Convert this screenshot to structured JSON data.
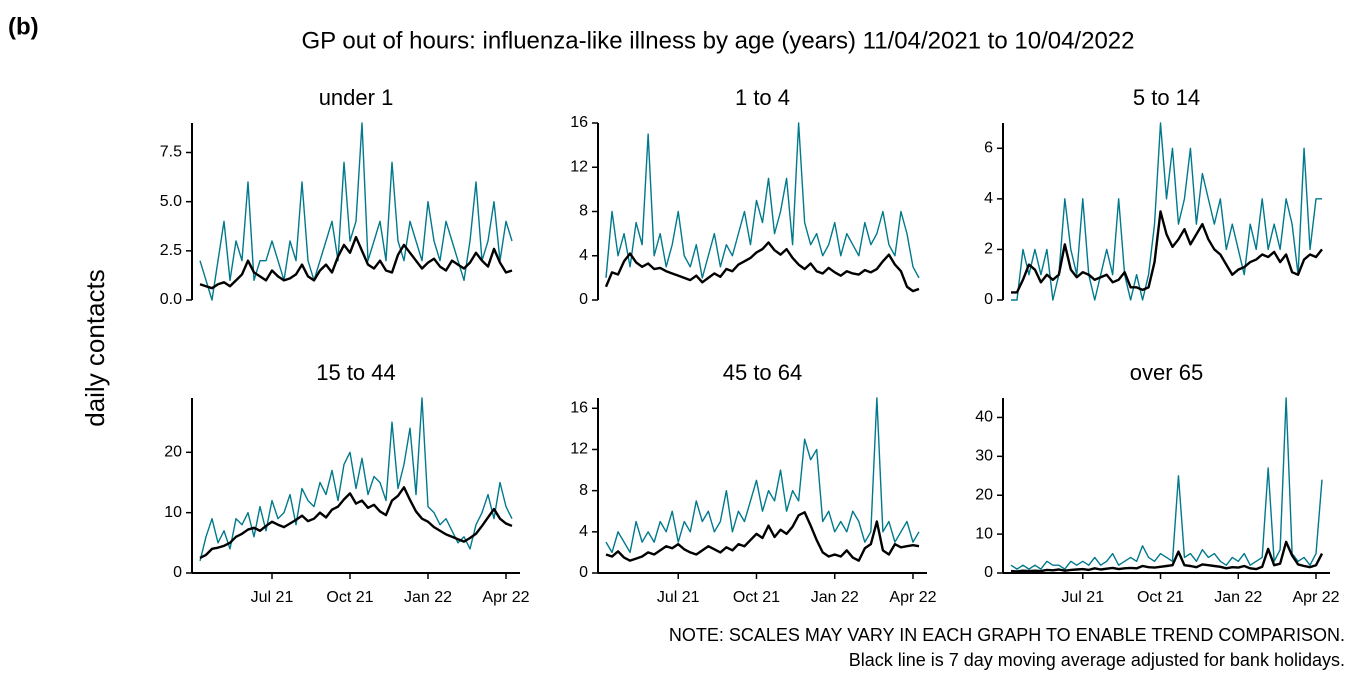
{
  "label": "(b)",
  "title": "GP out of hours: influenza-like illness by age (years) 11/04/2021 to 10/04/2022",
  "y_label": "daily contacts",
  "notes": [
    "NOTE: SCALES MAY VARY IN EACH GRAPH TO ENABLE TREND COMPARISON.",
    "Black line is 7 day moving average adjusted for bank holidays."
  ],
  "chart_data": [
    {
      "type": "line",
      "title": "under 1",
      "ylim": [
        0,
        9
      ],
      "yticks": [
        {
          "value": 0,
          "label": "0.0"
        },
        {
          "value": 2.5,
          "label": "2.5"
        },
        {
          "value": 5,
          "label": "5.0"
        },
        {
          "value": 7.5,
          "label": "7.5"
        }
      ],
      "series": [
        {
          "color": "#00798c",
          "values": [
            2,
            1,
            0,
            2,
            4,
            1,
            3,
            2,
            6,
            1,
            2,
            2,
            3,
            2,
            1,
            3,
            2,
            6,
            2,
            1,
            2,
            3,
            4,
            2,
            7,
            3,
            4,
            9,
            2,
            3,
            4,
            2,
            7,
            3,
            2,
            4,
            3,
            2,
            5,
            3,
            2,
            4,
            3,
            2,
            1,
            3,
            6,
            2,
            3,
            5,
            2,
            4,
            3
          ]
        },
        {
          "color": "#000000",
          "values": [
            0.8,
            0.7,
            0.6,
            0.8,
            0.9,
            0.7,
            1.0,
            1.3,
            2.0,
            1.4,
            1.2,
            1.0,
            1.5,
            1.2,
            1.0,
            1.1,
            1.3,
            1.8,
            1.2,
            1.0,
            1.5,
            1.8,
            1.4,
            2.2,
            2.8,
            2.4,
            3.2,
            2.5,
            1.8,
            1.6,
            2.0,
            1.5,
            1.4,
            2.3,
            2.8,
            2.4,
            2.0,
            1.6,
            1.9,
            2.1,
            1.7,
            1.5,
            2.0,
            1.8,
            1.6,
            1.9,
            2.4,
            2.0,
            1.7,
            2.6,
            1.9,
            1.4,
            1.5
          ]
        }
      ]
    },
    {
      "type": "line",
      "title": "1 to 4",
      "ylim": [
        0,
        16
      ],
      "yticks": [
        0,
        4,
        8,
        12,
        16
      ],
      "series": [
        {
          "color": "#00798c",
          "values": [
            2,
            8,
            4,
            6,
            3,
            7,
            5,
            15,
            4,
            6,
            3,
            5,
            8,
            4,
            3,
            5,
            2,
            4,
            6,
            3,
            5,
            4,
            6,
            8,
            5,
            9,
            7,
            11,
            6,
            8,
            11,
            5,
            16,
            7,
            5,
            6,
            4,
            5,
            7,
            4,
            6,
            5,
            4,
            7,
            5,
            6,
            8,
            5,
            4,
            8,
            6,
            3,
            2
          ]
        },
        {
          "color": "#000000",
          "values": [
            1.2,
            2.5,
            2.3,
            3.5,
            4.2,
            3.4,
            3.0,
            3.3,
            2.8,
            2.9,
            2.6,
            2.4,
            2.2,
            2.0,
            1.8,
            2.2,
            1.6,
            2.0,
            2.4,
            2.1,
            2.8,
            2.6,
            3.2,
            3.5,
            3.8,
            4.3,
            4.6,
            5.2,
            4.5,
            4.1,
            4.6,
            3.8,
            3.2,
            2.8,
            3.3,
            2.6,
            2.4,
            2.9,
            2.5,
            2.2,
            2.6,
            2.4,
            2.3,
            2.7,
            2.5,
            2.8,
            3.5,
            4.1,
            3.2,
            2.6,
            1.2,
            0.8,
            1.0
          ]
        }
      ]
    },
    {
      "type": "line",
      "title": "5 to 14",
      "ylim": [
        0,
        7
      ],
      "yticks": [
        0,
        2,
        4,
        6
      ],
      "series": [
        {
          "color": "#00798c",
          "values": [
            0,
            0,
            2,
            1,
            2,
            1,
            2,
            0,
            1,
            4,
            2,
            1,
            4,
            1,
            0,
            1,
            2,
            1,
            4,
            1,
            0,
            1,
            0,
            1,
            3,
            7,
            4,
            6,
            3,
            4,
            6,
            3,
            5,
            4,
            3,
            4,
            2,
            3,
            2,
            1,
            3,
            2,
            4,
            2,
            3,
            2,
            4,
            3,
            1,
            6,
            2,
            4,
            4
          ]
        },
        {
          "color": "#000000",
          "values": [
            0.3,
            0.3,
            0.8,
            1.4,
            1.2,
            0.7,
            1.0,
            0.8,
            1.0,
            2.2,
            1.2,
            0.9,
            1.1,
            1.0,
            0.8,
            0.9,
            1.0,
            0.7,
            0.8,
            1.1,
            0.5,
            0.5,
            0.4,
            0.5,
            1.5,
            3.5,
            2.6,
            2.1,
            2.4,
            2.8,
            2.2,
            2.6,
            3.0,
            2.4,
            2.0,
            1.8,
            1.4,
            1.0,
            1.2,
            1.3,
            1.5,
            1.6,
            1.8,
            1.7,
            1.9,
            1.5,
            1.8,
            1.1,
            1.0,
            1.6,
            1.8,
            1.7,
            2.0
          ]
        }
      ]
    },
    {
      "type": "line",
      "title": "15 to 44",
      "ylim": [
        0,
        29
      ],
      "yticks": [
        0,
        10,
        20
      ],
      "categories": [
        null,
        null,
        null,
        null,
        null,
        null,
        null,
        null,
        null,
        null,
        null,
        null,
        "Jul 21",
        null,
        null,
        null,
        null,
        null,
        null,
        null,
        null,
        null,
        null,
        null,
        null,
        "Oct 21",
        null,
        null,
        null,
        null,
        null,
        null,
        null,
        null,
        null,
        null,
        null,
        null,
        "Jan 22",
        null,
        null,
        null,
        null,
        null,
        null,
        null,
        null,
        null,
        null,
        null,
        null,
        "Apr 22",
        null
      ],
      "series": [
        {
          "color": "#00798c",
          "values": [
            2,
            6,
            9,
            5,
            7,
            4,
            9,
            8,
            10,
            6,
            11,
            7,
            12,
            9,
            10,
            13,
            8,
            14,
            12,
            11,
            15,
            13,
            17,
            12,
            18,
            20,
            14,
            19,
            13,
            16,
            15,
            12,
            25,
            14,
            18,
            24,
            13,
            29,
            11,
            10,
            8,
            9,
            7,
            5,
            6,
            4,
            8,
            10,
            13,
            9,
            15,
            11,
            9
          ]
        },
        {
          "color": "#000000",
          "values": [
            2.5,
            3.0,
            4.0,
            4.2,
            4.5,
            5.0,
            6.0,
            6.5,
            7.2,
            7.5,
            7.0,
            7.8,
            8.5,
            8.0,
            7.6,
            8.2,
            8.8,
            9.5,
            8.6,
            9.0,
            10.0,
            9.2,
            10.5,
            11.0,
            12.2,
            13.2,
            11.5,
            12.0,
            10.8,
            11.3,
            10.2,
            9.6,
            12.0,
            12.8,
            14.2,
            12.1,
            10.2,
            9.0,
            8.5,
            7.6,
            7.0,
            6.4,
            6.0,
            5.6,
            5.2,
            5.8,
            6.5,
            7.8,
            9.2,
            10.6,
            9.0,
            8.2,
            7.8
          ]
        }
      ]
    },
    {
      "type": "line",
      "title": "45 to 64",
      "ylim": [
        0,
        17
      ],
      "yticks": [
        0,
        4,
        8,
        12,
        16
      ],
      "categories": [
        null,
        null,
        null,
        null,
        null,
        null,
        null,
        null,
        null,
        null,
        null,
        null,
        "Jul 21",
        null,
        null,
        null,
        null,
        null,
        null,
        null,
        null,
        null,
        null,
        null,
        null,
        "Oct 21",
        null,
        null,
        null,
        null,
        null,
        null,
        null,
        null,
        null,
        null,
        null,
        null,
        "Jan 22",
        null,
        null,
        null,
        null,
        null,
        null,
        null,
        null,
        null,
        null,
        null,
        null,
        "Apr 22",
        null
      ],
      "series": [
        {
          "color": "#00798c",
          "values": [
            3,
            2,
            4,
            3,
            2,
            5,
            3,
            4,
            3,
            5,
            4,
            6,
            3,
            5,
            4,
            7,
            5,
            6,
            4,
            5,
            8,
            4,
            6,
            5,
            7,
            9,
            6,
            8,
            7,
            10,
            6,
            8,
            7,
            13,
            11,
            12,
            5,
            6,
            4,
            5,
            4,
            6,
            5,
            3,
            4,
            17,
            4,
            5,
            3,
            4,
            5,
            3,
            4
          ]
        },
        {
          "color": "#000000",
          "values": [
            1.8,
            1.6,
            2.1,
            1.5,
            1.2,
            1.4,
            1.6,
            2.0,
            1.8,
            2.2,
            2.6,
            2.4,
            2.8,
            2.3,
            2.0,
            1.8,
            2.2,
            2.6,
            2.3,
            2.0,
            2.5,
            2.2,
            2.8,
            2.6,
            3.2,
            3.8,
            3.4,
            4.6,
            3.5,
            4.2,
            3.8,
            4.5,
            5.6,
            5.9,
            4.6,
            3.2,
            2.0,
            1.6,
            1.8,
            1.6,
            2.2,
            1.5,
            1.2,
            2.4,
            2.8,
            5.0,
            2.2,
            1.8,
            2.8,
            2.5,
            2.6,
            2.7,
            2.6
          ]
        }
      ]
    },
    {
      "type": "line",
      "title": "over 65",
      "ylim": [
        0,
        45
      ],
      "yticks": [
        0,
        10,
        20,
        30,
        40
      ],
      "categories": [
        null,
        null,
        null,
        null,
        null,
        null,
        null,
        null,
        null,
        null,
        null,
        null,
        "Jul 21",
        null,
        null,
        null,
        null,
        null,
        null,
        null,
        null,
        null,
        null,
        null,
        null,
        "Oct 21",
        null,
        null,
        null,
        null,
        null,
        null,
        null,
        null,
        null,
        null,
        null,
        null,
        "Jan 22",
        null,
        null,
        null,
        null,
        null,
        null,
        null,
        null,
        null,
        null,
        null,
        null,
        "Apr 22",
        null
      ],
      "series": [
        {
          "color": "#00798c",
          "values": [
            2,
            1,
            2,
            1,
            2,
            1,
            3,
            2,
            2,
            1,
            3,
            2,
            3,
            2,
            4,
            2,
            3,
            5,
            2,
            3,
            4,
            3,
            7,
            4,
            3,
            5,
            4,
            3,
            25,
            4,
            5,
            3,
            6,
            4,
            5,
            3,
            2,
            4,
            3,
            5,
            2,
            3,
            4,
            27,
            3,
            6,
            45,
            5,
            3,
            4,
            2,
            5,
            24
          ]
        },
        {
          "color": "#000000",
          "values": [
            0.5,
            0.4,
            0.6,
            0.5,
            0.6,
            0.5,
            0.8,
            0.7,
            0.9,
            0.6,
            0.8,
            0.9,
            1.0,
            0.8,
            1.2,
            0.9,
            1.1,
            1.3,
            1.0,
            1.2,
            1.3,
            1.2,
            1.8,
            1.5,
            1.4,
            1.6,
            1.8,
            2.0,
            5.5,
            2.0,
            1.8,
            1.5,
            2.2,
            2.0,
            1.8,
            1.6,
            1.2,
            1.5,
            1.4,
            1.8,
            1.2,
            1.0,
            1.6,
            6.2,
            2.0,
            2.4,
            8.0,
            4.5,
            2.2,
            1.8,
            1.5,
            2.0,
            5.0
          ]
        }
      ]
    }
  ]
}
